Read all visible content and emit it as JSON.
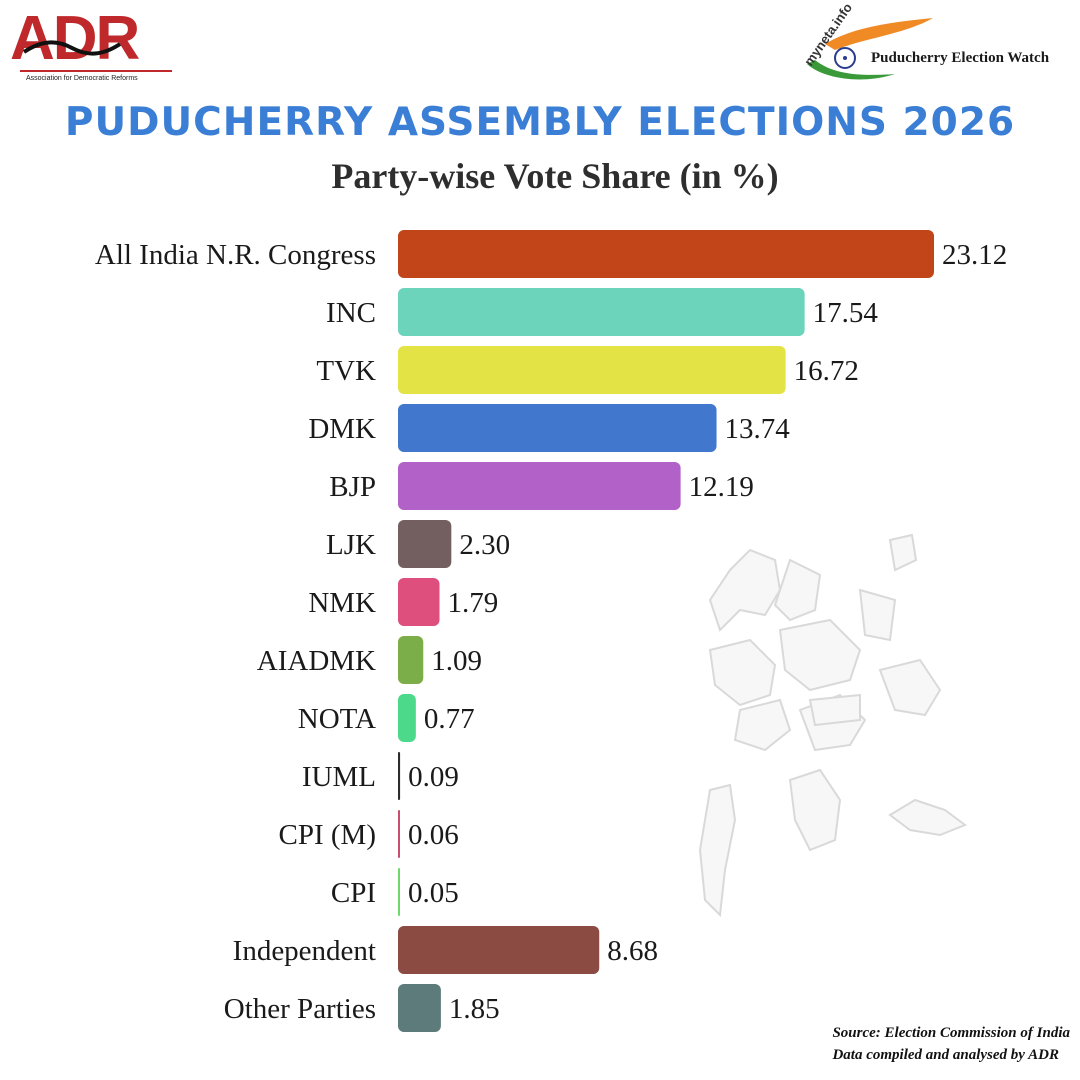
{
  "logos": {
    "adr": {
      "name": "ADR",
      "tagline": "Association for Democratic Reforms"
    },
    "myneta": {
      "site": "myneta.info",
      "title": "Puducherry Election Watch"
    }
  },
  "title": "PUDUCHERRY ASSEMBLY ELECTIONS 2026",
  "subtitle": "Party-wise Vote Share (in %)",
  "source": {
    "line1": "Source: Election Commission of India",
    "line2": "Data compiled and analysed by ADR"
  },
  "colors": {
    "title": "#3a7fd5",
    "adr": "#c0292b"
  },
  "chart_data": {
    "type": "bar",
    "orientation": "horizontal",
    "title": "Party-wise Vote Share (in %)",
    "xlabel": "",
    "ylabel": "",
    "xlim": [
      0,
      23.12
    ],
    "grid": false,
    "legend": "none",
    "categories": [
      "All India N.R. Congress",
      "INC",
      "TVK",
      "DMK",
      "BJP",
      "LJK",
      "NMK",
      "AIADMK",
      "NOTA",
      "IUML",
      "CPI (M)",
      "CPI",
      "Independent",
      "Other Parties"
    ],
    "values": [
      23.12,
      17.54,
      16.72,
      13.74,
      12.19,
      2.3,
      1.79,
      1.09,
      0.77,
      0.09,
      0.06,
      0.05,
      8.68,
      1.85
    ],
    "value_labels": [
      "23.12",
      "17.54",
      "16.72",
      "13.74",
      "12.19",
      "2.30",
      "1.79",
      "1.09",
      "0.77",
      "0.09",
      "0.06",
      "0.05",
      "8.68",
      "1.85"
    ],
    "colors": [
      "#c24419",
      "#6dd4bc",
      "#e3e345",
      "#4178cd",
      "#b261c9",
      "#735f5f",
      "#de4f7e",
      "#7bae48",
      "#4dd98a",
      "#2c2c2c",
      "#c8506e",
      "#6fd86a",
      "#8b4a42",
      "#5c7b7a"
    ]
  }
}
